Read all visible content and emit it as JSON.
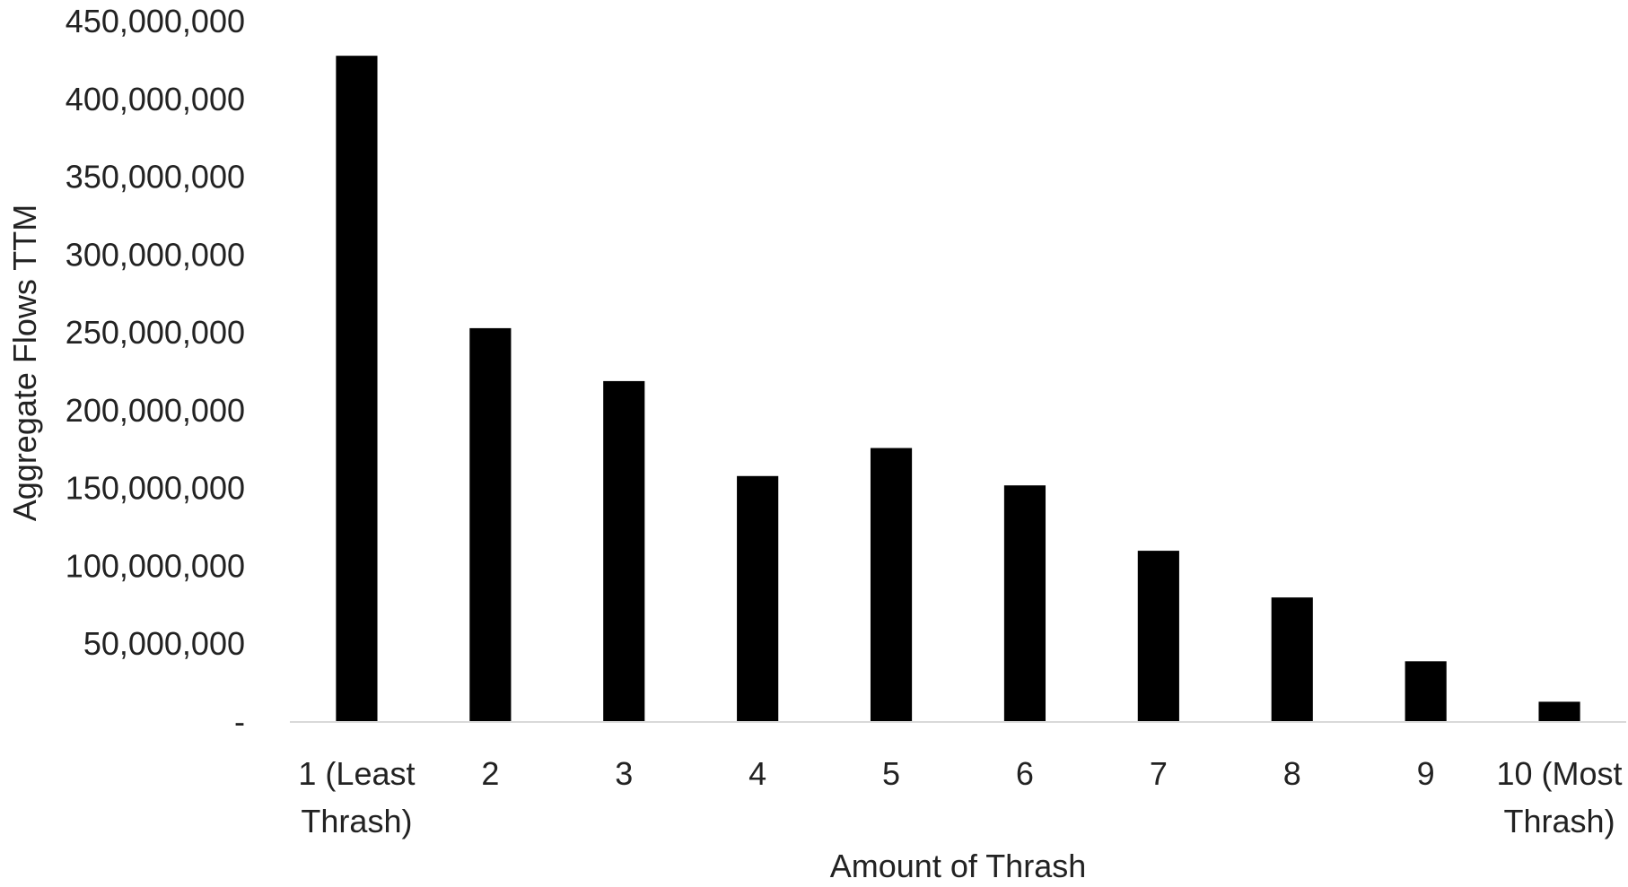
{
  "chart_data": {
    "type": "bar",
    "title": "",
    "xlabel": "Amount of Thrash",
    "ylabel": "Aggregate Flows TTM",
    "categories": [
      "1 (Least Thrash)",
      "2",
      "3",
      "4",
      "5",
      "6",
      "7",
      "8",
      "9",
      "10 (Most Thrash)"
    ],
    "category_lines": [
      [
        "1 (Least",
        "Thrash)"
      ],
      [
        "2"
      ],
      [
        "3"
      ],
      [
        "4"
      ],
      [
        "5"
      ],
      [
        "6"
      ],
      [
        "7"
      ],
      [
        "8"
      ],
      [
        "9"
      ],
      [
        "10 (Most",
        "Thrash)"
      ]
    ],
    "values": [
      428000000,
      253000000,
      219000000,
      158000000,
      176000000,
      152000000,
      110000000,
      80000000,
      39000000,
      13000000
    ],
    "ylim": [
      0,
      450000000
    ],
    "yticks": [
      0,
      50000000,
      100000000,
      150000000,
      200000000,
      250000000,
      300000000,
      350000000,
      400000000,
      450000000
    ],
    "ytick_labels": [
      "-",
      "50,000,000",
      "100,000,000",
      "150,000,000",
      "200,000,000",
      "250,000,000",
      "300,000,000",
      "350,000,000",
      "400,000,000",
      "450,000,000"
    ],
    "grid": false,
    "legend": "none",
    "bar_color": "#000000",
    "axis_color": "#d9d9d9"
  }
}
